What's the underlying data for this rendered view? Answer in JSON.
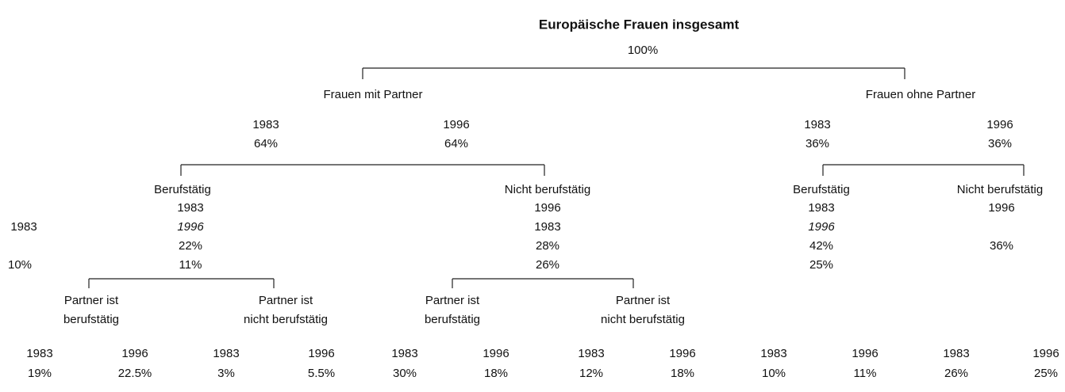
{
  "title": "Europäische Frauen insgesamt",
  "total": "100%",
  "level1": [
    {
      "label": "Frauen mit Partner"
    },
    {
      "label": "Frauen ohne Partner"
    }
  ],
  "shares": [
    {
      "year": "1983",
      "value": "64%"
    },
    {
      "year": "1996",
      "value": "64%"
    },
    {
      "year": "1983",
      "value": "36%"
    },
    {
      "year": "1996",
      "value": "36%"
    }
  ],
  "level2": [
    {
      "label": "Berufstätig",
      "lines": [
        "1983",
        "1996",
        "22%",
        "11%"
      ]
    },
    {
      "label": "Nicht berufstätig",
      "lines": [
        "1996",
        "1983",
        "28%",
        "26%"
      ]
    },
    {
      "label": "Berufstätig",
      "lines": [
        "1983",
        "1996",
        "42%",
        "25%"
      ]
    },
    {
      "label": "Nicht berufstätig",
      "lines": [
        "1996",
        "36%"
      ]
    }
  ],
  "side": [
    "1983",
    "10%"
  ],
  "level3": [
    {
      "lines": [
        "Partner ist",
        "berufstätig"
      ]
    },
    {
      "lines": [
        "Partner ist",
        "nicht berufstätig"
      ]
    },
    {
      "lines": [
        "Partner ist",
        "berufstätig"
      ]
    },
    {
      "lines": [
        "Partner ist",
        "nicht berufstätig"
      ]
    }
  ],
  "bottom": [
    {
      "year": "1983",
      "value": "19%"
    },
    {
      "year": "1996",
      "value": "22.5%"
    },
    {
      "year": "1983",
      "value": "3%"
    },
    {
      "year": "1996",
      "value": "5.5%"
    },
    {
      "year": "1983",
      "value": "30%"
    },
    {
      "year": "1996",
      "value": "18%"
    },
    {
      "year": "1983",
      "value": "12%"
    },
    {
      "year": "1996",
      "value": "18%"
    },
    {
      "year": "1983",
      "value": "10%"
    },
    {
      "year": "1996",
      "value": "11%"
    },
    {
      "year": "1983",
      "value": "26%"
    },
    {
      "year": "1996",
      "value": "25%"
    }
  ]
}
